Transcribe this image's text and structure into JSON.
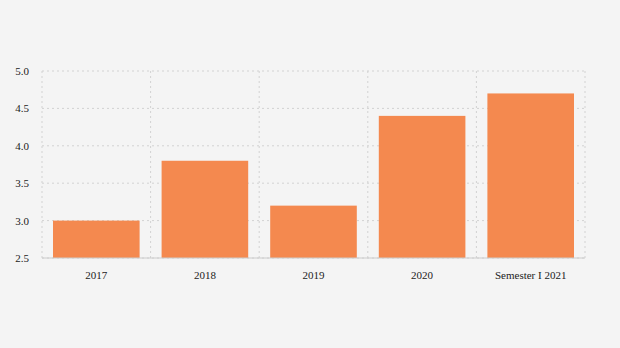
{
  "chart_data": {
    "type": "bar",
    "categories": [
      "2017",
      "2018",
      "2019",
      "2020",
      "Semester I 2021"
    ],
    "values": [
      3.0,
      3.8,
      3.2,
      4.4,
      4.7
    ],
    "color": "#f4894f",
    "ylim": [
      2.5,
      5.0
    ],
    "yticks": [
      2.5,
      {
        "value": 3,
        "label": "3.0"
      },
      {
        "value": 3.5,
        "label": "3.5"
      },
      {
        "value": 4,
        "label": "4.0"
      },
      4.5,
      {
        "value": 5,
        "label": "5.0"
      }
    ],
    "grid": true
  }
}
